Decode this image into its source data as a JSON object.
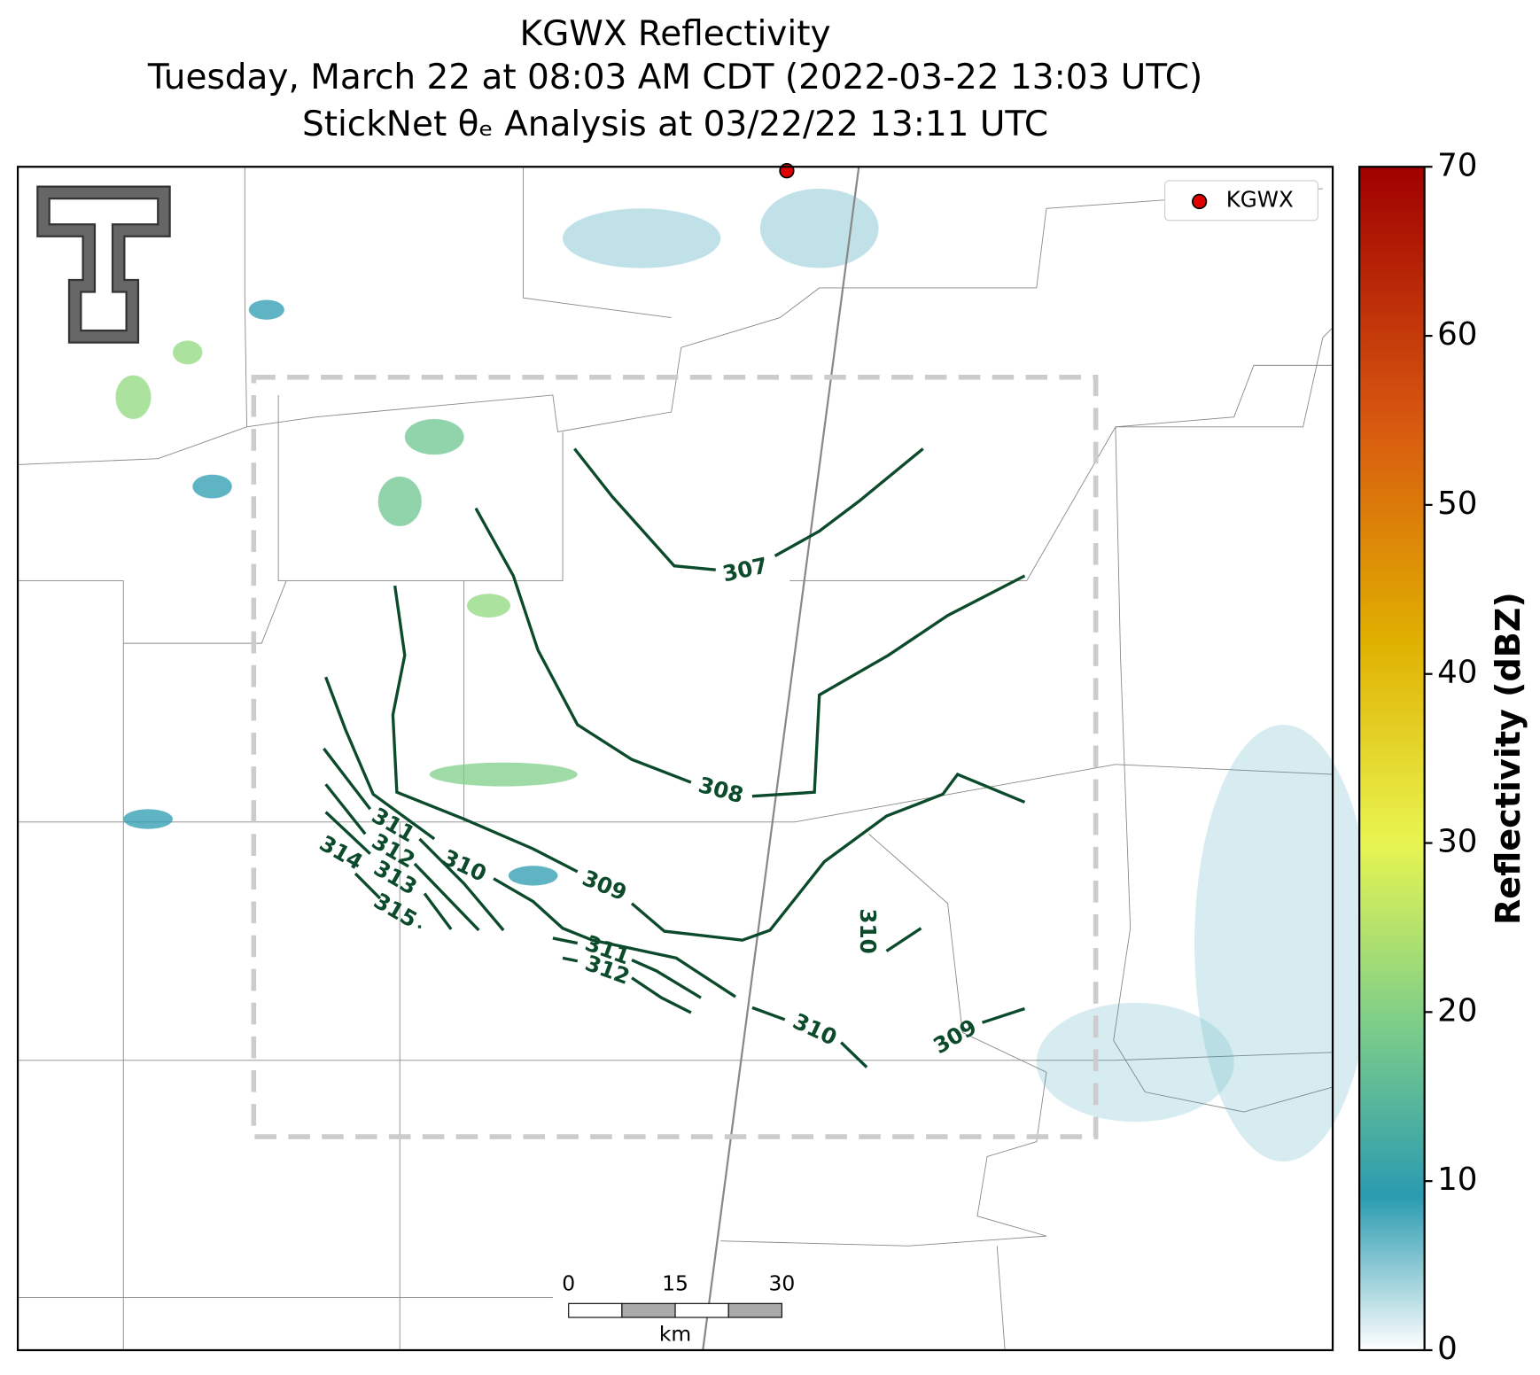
{
  "header": {
    "title": "KGWX Reflectivity",
    "subtitle": "Tuesday, March 22 at 08:03 AM CDT (2022-03-22 13:03 UTC)",
    "analysis": "StickNet θₑ Analysis at 03/22/22 13:11 UTC"
  },
  "legend": {
    "label": "KGWX",
    "color": "#e00000"
  },
  "colorbar": {
    "label": "Reflectivity (dBZ)",
    "lim": [
      0,
      70
    ],
    "ticks": [
      0,
      10,
      20,
      30,
      40,
      50,
      60,
      70
    ]
  },
  "contours": {
    "color": "#0b4a2a",
    "levels": [
      307,
      308,
      309,
      310,
      311,
      312,
      313,
      314,
      315,
      310,
      311,
      312,
      310,
      309
    ]
  },
  "scale_bar": {
    "ticks": [
      0,
      15,
      30
    ],
    "lim": [
      0,
      30
    ],
    "unit": "km"
  }
}
